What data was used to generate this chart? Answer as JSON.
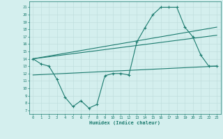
{
  "xlabel": "Humidex (Indice chaleur)",
  "bg_color": "#d4efee",
  "line_color": "#1a7a6e",
  "grid_color": "#c0dedd",
  "x_ticks": [
    0,
    1,
    2,
    3,
    4,
    5,
    6,
    7,
    8,
    9,
    10,
    11,
    12,
    13,
    14,
    15,
    16,
    17,
    18,
    19,
    20,
    21,
    22,
    23
  ],
  "y_ticks": [
    7,
    8,
    9,
    10,
    11,
    12,
    13,
    14,
    15,
    16,
    17,
    18,
    19,
    20,
    21
  ],
  "ylim": [
    6.5,
    21.8
  ],
  "xlim": [
    -0.5,
    23.5
  ],
  "curve1_x": [
    0,
    1,
    2,
    3,
    4,
    5,
    6,
    7,
    8,
    9,
    10,
    11,
    12,
    13,
    14,
    15,
    16,
    17,
    18,
    19,
    20,
    21,
    22,
    23
  ],
  "curve1_y": [
    14,
    13.3,
    13,
    11.2,
    8.8,
    7.5,
    8.3,
    7.3,
    7.8,
    11.7,
    12,
    12,
    11.8,
    16.3,
    18.2,
    20,
    21,
    21,
    21,
    18.3,
    17,
    14.5,
    13,
    13
  ],
  "trend1_x": [
    0,
    23
  ],
  "trend1_y": [
    14,
    18.3
  ],
  "trend2_x": [
    0,
    23
  ],
  "trend2_y": [
    14,
    17.2
  ],
  "trend3_x": [
    0,
    23
  ],
  "trend3_y": [
    11.8,
    13.0
  ]
}
